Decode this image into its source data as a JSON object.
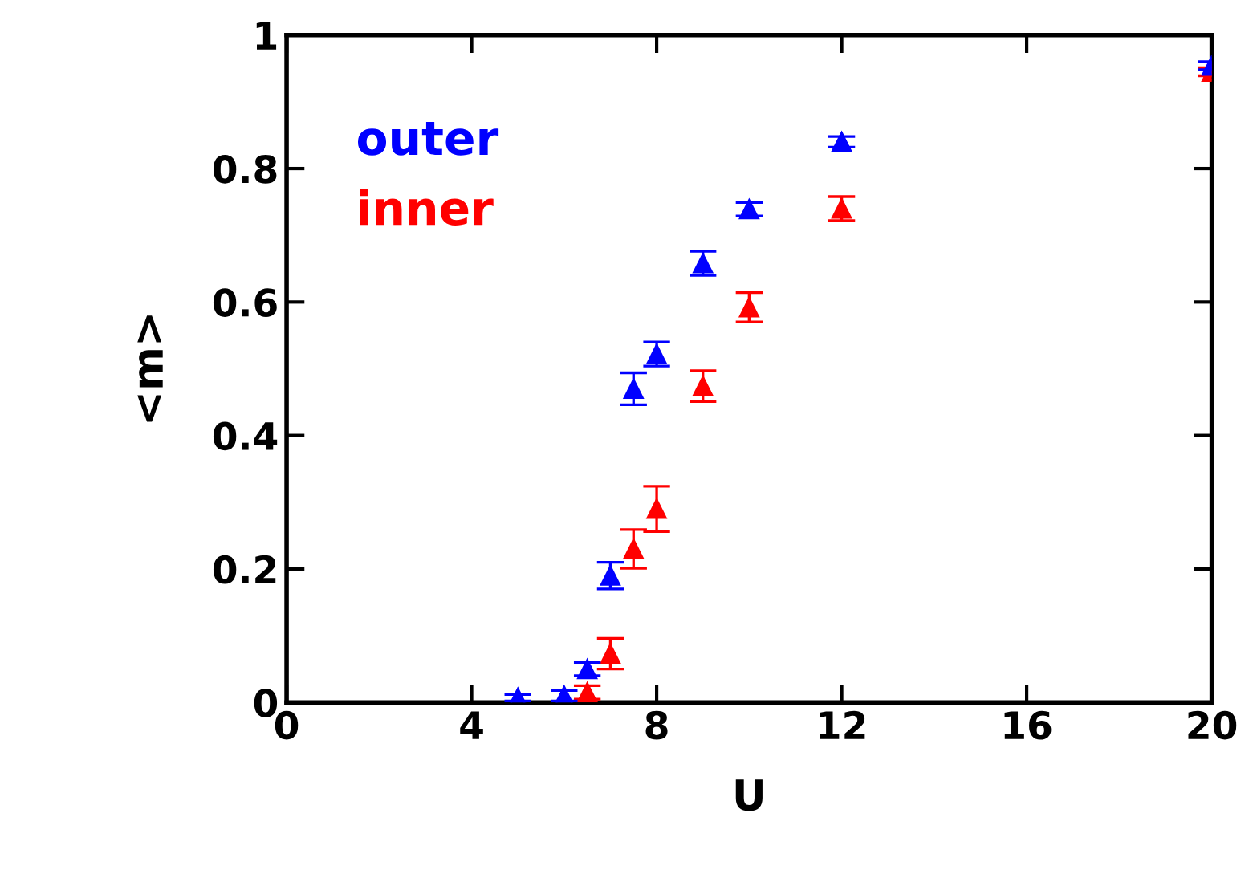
{
  "chart_data": {
    "type": "scatter",
    "xlabel": "U",
    "ylabel": "<m>",
    "xlim": [
      0,
      20
    ],
    "ylim": [
      0,
      1
    ],
    "xticks": [
      0,
      4,
      8,
      12,
      16,
      20
    ],
    "yticks": [
      0,
      0.2,
      0.4,
      0.6,
      0.8,
      1
    ],
    "marker": "triangle",
    "grid": false,
    "legend": false,
    "series": [
      {
        "name": "outer",
        "color": "#0000ff",
        "x": [
          5,
          6,
          6.5,
          7,
          7.5,
          8,
          9,
          10,
          12,
          20
        ],
        "values": [
          0.007,
          0.01,
          0.05,
          0.19,
          0.47,
          0.522,
          0.658,
          0.739,
          0.84,
          0.954
        ],
        "errors": [
          0.005,
          0.008,
          0.01,
          0.02,
          0.024,
          0.018,
          0.018,
          0.01,
          0.008,
          0.006
        ]
      },
      {
        "name": "inner",
        "color": "#ff0000",
        "x": [
          6.5,
          7,
          7.5,
          8,
          9,
          10,
          12,
          20
        ],
        "values": [
          0.015,
          0.073,
          0.23,
          0.29,
          0.474,
          0.592,
          0.74,
          0.945
        ],
        "errors": [
          0.01,
          0.023,
          0.029,
          0.034,
          0.023,
          0.022,
          0.018,
          0.006
        ]
      }
    ]
  }
}
